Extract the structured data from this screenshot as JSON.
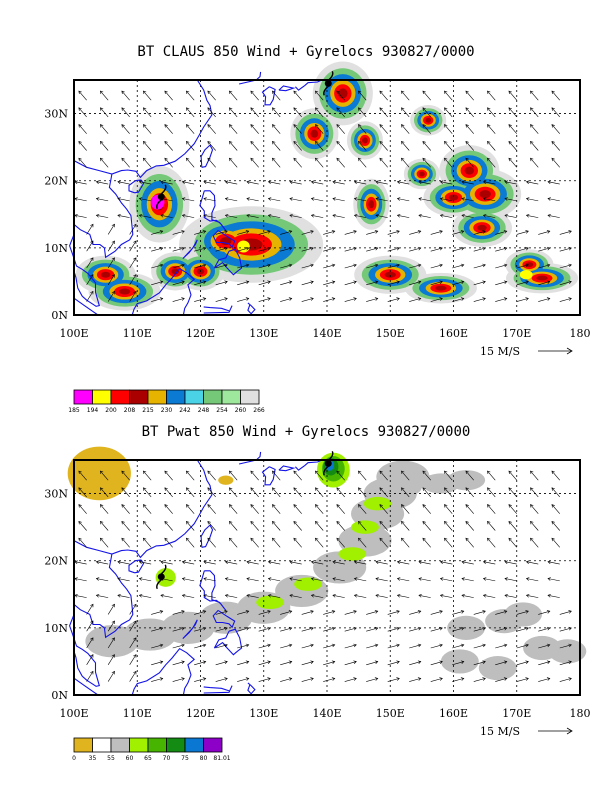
{
  "panels": [
    {
      "title": "BT CLAUS 850 Wind + Gyrelocs 930827/0000",
      "lat_labels": [
        "30N",
        "20N",
        "10N",
        "0N"
      ],
      "lon_labels": [
        "100E",
        "110E",
        "120E",
        "130E",
        "140E",
        "150E",
        "160E",
        "170E",
        "180"
      ],
      "ref_vector_label": "15 M/S",
      "colorbar": {
        "labels": [
          "185",
          "194",
          "200",
          "208",
          "215",
          "230",
          "242",
          "248",
          "254",
          "260",
          "266"
        ],
        "colors": [
          "#ff00ff",
          "#ffff00",
          "#ff0000",
          "#aa0000",
          "#e6b400",
          "#0a7ad2",
          "#4ad2e6",
          "#74c878",
          "#9ee89e",
          "#e0e0e0"
        ]
      },
      "storm_symbols": [
        {
          "name": "typhoon-north",
          "lon": 140.2,
          "lat": 34.5
        },
        {
          "name": "typhoon-scs",
          "lon": 113.8,
          "lat": 17.6
        }
      ]
    },
    {
      "title": "BT Pwat 850 Wind + Gyrelocs 930827/0000",
      "lat_labels": [
        "30N",
        "20N",
        "10N",
        "0N"
      ],
      "lon_labels": [
        "100E",
        "110E",
        "120E",
        "130E",
        "140E",
        "150E",
        "160E",
        "170E",
        "180"
      ],
      "ref_vector_label": "15 M/S",
      "colorbar": {
        "labels": [
          "0",
          "35",
          "55",
          "60",
          "65",
          "70",
          "75",
          "80",
          "81.01"
        ],
        "colors": [
          "#e0b41e",
          "#ffffff",
          "#bebebe",
          "#a0f000",
          "#46b400",
          "#148c14",
          "#0a78d2",
          "#8c00c8"
        ]
      },
      "storm_symbols": [
        {
          "name": "typhoon-north",
          "lon": 140.2,
          "lat": 34.5
        },
        {
          "name": "typhoon-scs",
          "lon": 113.8,
          "lat": 17.6
        }
      ]
    }
  ]
}
